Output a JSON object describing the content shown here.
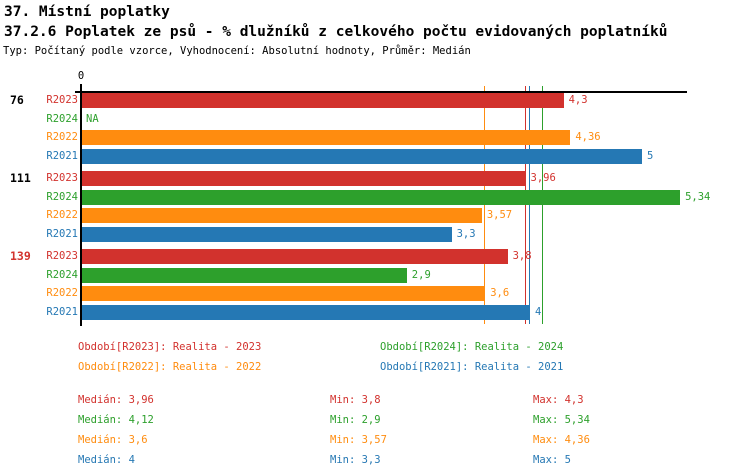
{
  "header": {
    "title1": "37. Místní poplatky",
    "title2": "37.2.6 Poplatek ze psů - % dlužníků z celkového počtu evidovaných poplatníků",
    "subtitle": "Typ: Počítaný podle vzorce, Vyhodnocení: Absolutní hodnoty, Průměr: Medián"
  },
  "colors": {
    "r2023": "#d2322d",
    "r2024": "#2da02c",
    "r2022": "#ff8c0f",
    "r2021": "#2578b4",
    "black": "#000000"
  },
  "chart_data": {
    "type": "bar",
    "orientation": "horizontal",
    "axis_origin_label": "0",
    "xlim": [
      0,
      5.41
    ],
    "grid": false,
    "series_order": [
      "R2023",
      "R2024",
      "R2022",
      "R2021"
    ],
    "groups": [
      {
        "id": "76",
        "id_color": "#000000",
        "bars": [
          {
            "series": "R2023",
            "value": 4.3,
            "label": "4,3"
          },
          {
            "series": "R2024",
            "value": null,
            "label": "NA"
          },
          {
            "series": "R2022",
            "value": 4.36,
            "label": "4,36"
          },
          {
            "series": "R2021",
            "value": 5,
            "label": "5"
          }
        ]
      },
      {
        "id": "111",
        "id_color": "#000000",
        "bars": [
          {
            "series": "R2023",
            "value": 3.96,
            "label": "3,96"
          },
          {
            "series": "R2024",
            "value": 5.34,
            "label": "5,34"
          },
          {
            "series": "R2022",
            "value": 3.57,
            "label": "3,57"
          },
          {
            "series": "R2021",
            "value": 3.3,
            "label": "3,3"
          }
        ]
      },
      {
        "id": "139",
        "id_color": "#d2322d",
        "bars": [
          {
            "series": "R2023",
            "value": 3.8,
            "label": "3,8"
          },
          {
            "series": "R2024",
            "value": 2.9,
            "label": "2,9"
          },
          {
            "series": "R2022",
            "value": 3.6,
            "label": "3,6"
          },
          {
            "series": "R2021",
            "value": 4,
            "label": "4"
          }
        ]
      }
    ],
    "median_lines": [
      {
        "series": "R2022",
        "value": 3.6
      },
      {
        "series": "R2023",
        "value": 3.96
      },
      {
        "series": "R2021",
        "value": 4
      },
      {
        "series": "R2024",
        "value": 4.12
      }
    ]
  },
  "legend": [
    {
      "label": "Období[R2023]: Realita - 2023",
      "series": "r2023"
    },
    {
      "label": "Období[R2024]: Realita - 2024",
      "series": "r2024"
    },
    {
      "label": "Období[R2022]: Realita - 2022",
      "series": "r2022"
    },
    {
      "label": "Období[R2021]: Realita - 2021",
      "series": "r2021"
    }
  ],
  "stats": [
    {
      "series": "r2023",
      "median": "Medián: 3,96",
      "min": "Min: 3,8",
      "max": "Max: 4,3"
    },
    {
      "series": "r2024",
      "median": "Medián: 4,12",
      "min": "Min: 2,9",
      "max": "Max: 5,34"
    },
    {
      "series": "r2022",
      "median": "Medián: 3,6",
      "min": "Min: 3,57",
      "max": "Max: 4,36"
    },
    {
      "series": "r2021",
      "median": "Medián: 4",
      "min": "Min: 3,3",
      "max": "Max: 5"
    }
  ]
}
